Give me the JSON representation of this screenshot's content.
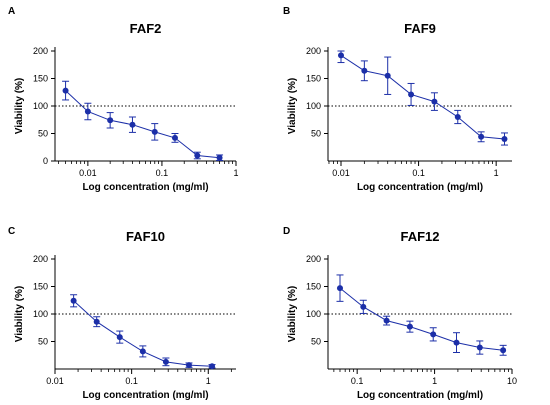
{
  "chart_data": [
    {
      "type": "line",
      "panel": "A",
      "title": "FAF2",
      "xlabel": "Log concentration (mg/ml)",
      "ylabel": "Viability (%)",
      "xscale": "log",
      "xlim": [
        0.0036,
        1.0
      ],
      "ylim": [
        0,
        200
      ],
      "xticks": [
        0.01,
        0.1,
        1
      ],
      "xtick_labels": [
        "0.01",
        "0.1",
        "1"
      ],
      "yticks": [
        0,
        50,
        100,
        150,
        200
      ],
      "ytick_labels": [
        "0",
        "50",
        "100",
        "150",
        "200"
      ],
      "reference_line": {
        "y": 100,
        "style": "dotted"
      },
      "grid": false,
      "series": [
        {
          "x": [
            0.005,
            0.01,
            0.02,
            0.04,
            0.08,
            0.15,
            0.3,
            0.6
          ],
          "y": [
            128,
            90,
            74,
            66,
            53,
            42,
            10,
            6
          ],
          "err": [
            17,
            15,
            14,
            14,
            15,
            8,
            6,
            5
          ]
        }
      ]
    },
    {
      "type": "line",
      "panel": "B",
      "title": "FAF9",
      "xlabel": "Log concentration (mg/ml)",
      "ylabel": "Viability (%)",
      "xscale": "log",
      "xlim": [
        0.0068,
        1.6
      ],
      "ylim": [
        0,
        200
      ],
      "xticks": [
        0.01,
        0.1,
        1
      ],
      "xtick_labels": [
        "0.01",
        "0.1",
        "1"
      ],
      "yticks": [
        50,
        100,
        150,
        200
      ],
      "ytick_labels": [
        "50",
        "100",
        "150",
        "200"
      ],
      "reference_line": {
        "y": 100,
        "style": "dotted"
      },
      "grid": false,
      "series": [
        {
          "x": [
            0.01,
            0.02,
            0.04,
            0.08,
            0.16,
            0.32,
            0.64,
            1.28
          ],
          "y": [
            192,
            164,
            155,
            121,
            108,
            80,
            44,
            40
          ],
          "err": [
            13,
            18,
            34,
            20,
            16,
            12,
            9,
            11
          ]
        }
      ]
    },
    {
      "type": "line",
      "panel": "C",
      "title": "FAF10",
      "xlabel": "Log concentration (mg/ml)",
      "ylabel": "Viability (%)",
      "xscale": "log",
      "xlim": [
        0.01,
        2.3
      ],
      "ylim": [
        0,
        200
      ],
      "xticks": [
        0.01,
        0.1,
        1
      ],
      "xtick_labels": [
        "0.01",
        "0.1",
        "1"
      ],
      "yticks": [
        50,
        100,
        150,
        200
      ],
      "ytick_labels": [
        "50",
        "100",
        "150",
        "200"
      ],
      "reference_line": {
        "y": 100,
        "style": "dotted"
      },
      "grid": false,
      "series": [
        {
          "x": [
            0.0175,
            0.035,
            0.07,
            0.14,
            0.28,
            0.56,
            1.12
          ],
          "y": [
            124,
            86,
            58,
            32,
            13,
            7,
            5
          ],
          "err": [
            11,
            9,
            11,
            10,
            7,
            4,
            3
          ]
        }
      ]
    },
    {
      "type": "line",
      "panel": "D",
      "title": "FAF12",
      "xlabel": "Log concentration (mg/ml)",
      "ylabel": "Viability (%)",
      "xscale": "log",
      "xlim": [
        0.042,
        10.0
      ],
      "ylim": [
        0,
        200
      ],
      "xticks": [
        0.1,
        1,
        10
      ],
      "xtick_labels": [
        "0.1",
        "1",
        "10"
      ],
      "yticks": [
        50,
        100,
        150,
        200
      ],
      "ytick_labels": [
        "50",
        "100",
        "150",
        "200"
      ],
      "reference_line": {
        "y": 100,
        "style": "dotted"
      },
      "grid": false,
      "series": [
        {
          "x": [
            0.06,
            0.12,
            0.24,
            0.48,
            0.96,
            1.92,
            3.84,
            7.68
          ],
          "y": [
            147,
            113,
            88,
            77,
            63,
            48,
            39,
            34
          ],
          "err": [
            24,
            12,
            8,
            10,
            12,
            18,
            12,
            9
          ]
        }
      ]
    }
  ],
  "style": {
    "series_color": "#1c2fa8",
    "axis_color": "#000000"
  }
}
